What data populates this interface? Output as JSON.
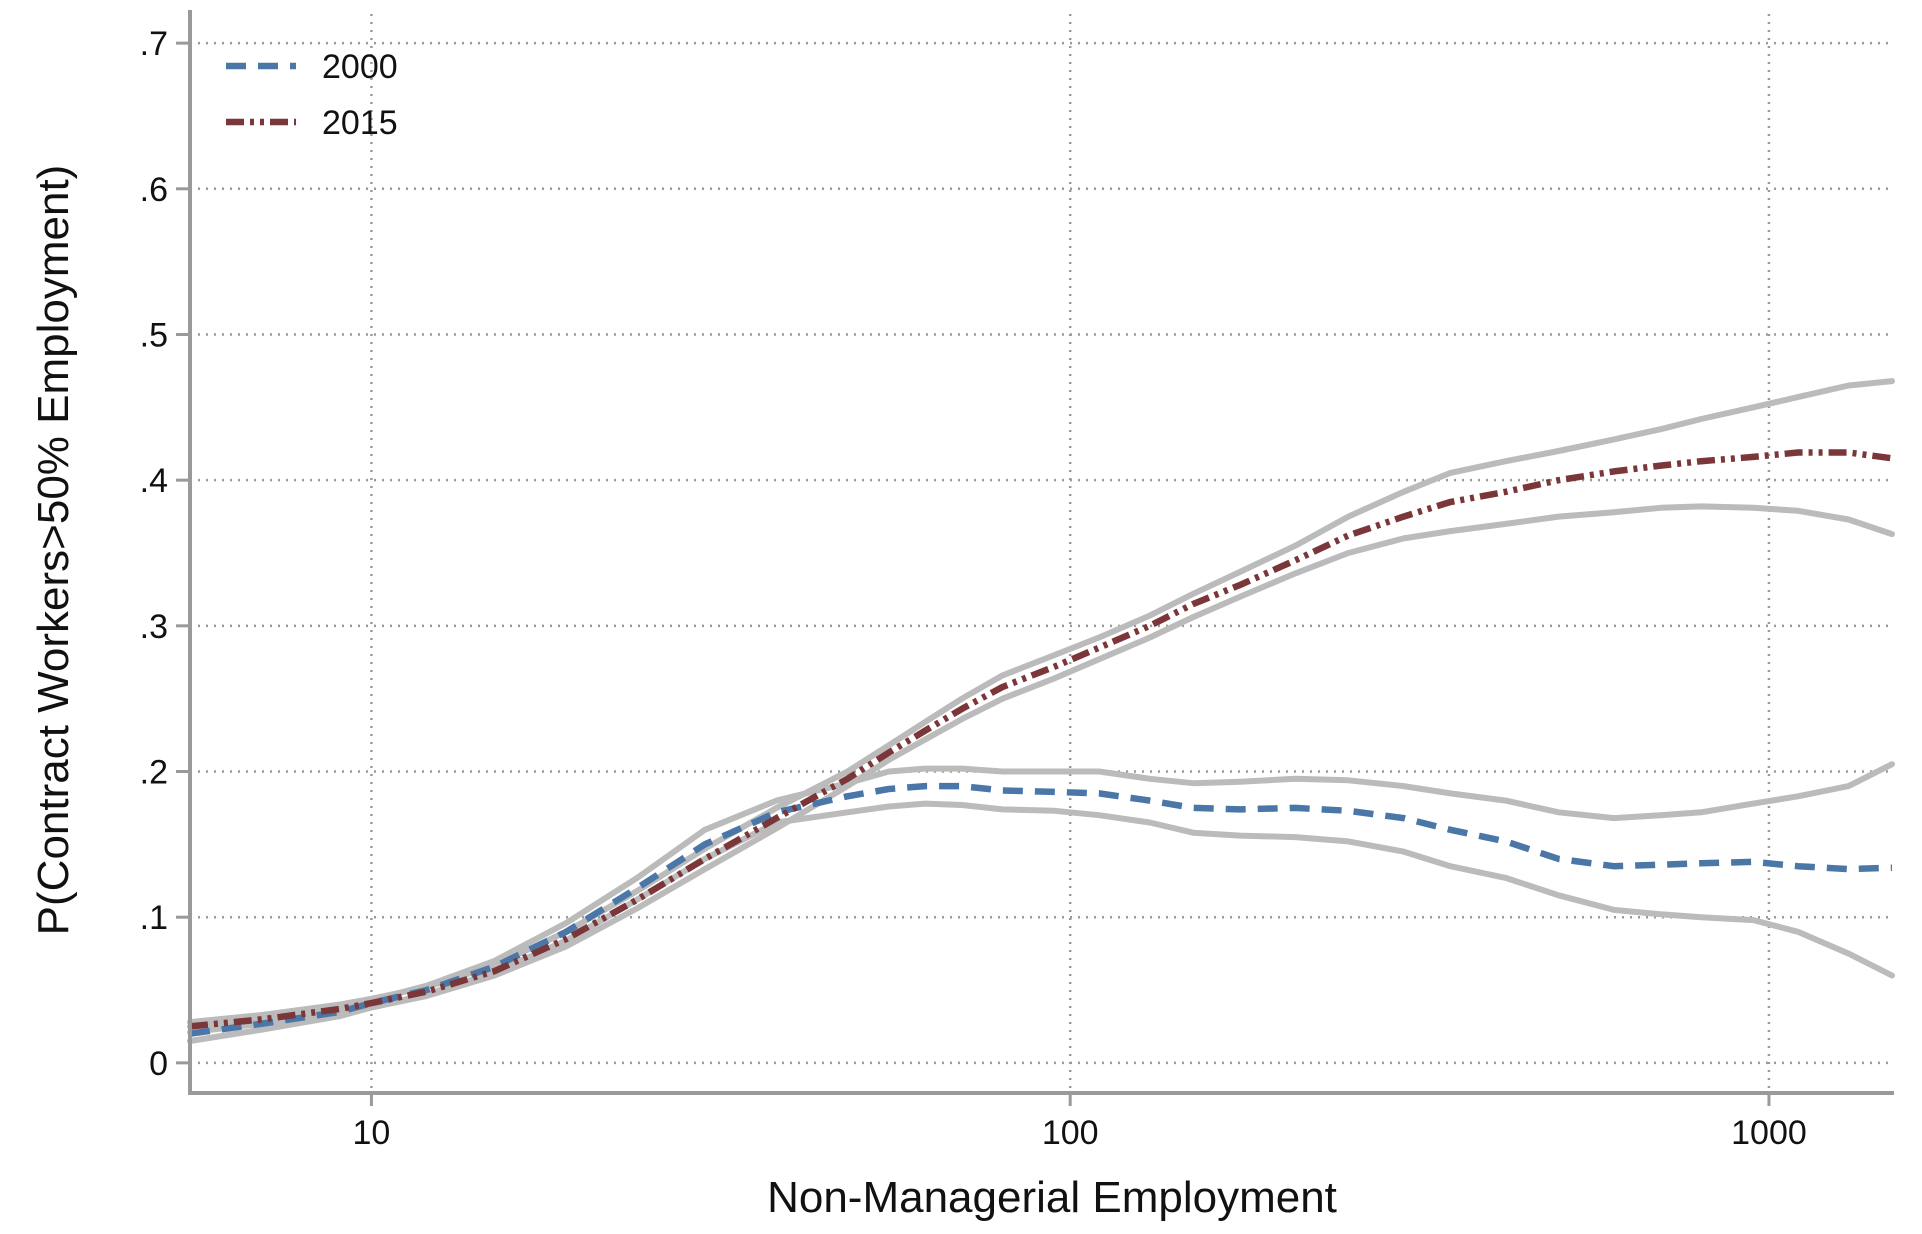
{
  "chart_data": {
    "type": "line",
    "title": "",
    "xlabel": "Non-Managerial Employment",
    "ylabel": "P(Contract Workers>50% Employment)",
    "x_scale": "log",
    "xlim": [
      5.5,
      1500
    ],
    "ylim": [
      -0.02,
      0.72
    ],
    "x_ticks": [
      10,
      100,
      1000
    ],
    "x_tick_labels": [
      "10",
      "100",
      "1000"
    ],
    "y_ticks": [
      0,
      0.1,
      0.2,
      0.3,
      0.4,
      0.5,
      0.6,
      0.7
    ],
    "y_tick_labels": [
      "0",
      ".1",
      ".2",
      ".3",
      ".4",
      ".5",
      ".6",
      ".7"
    ],
    "grid": true,
    "legend_position": "top-left",
    "series": [
      {
        "name": "2000",
        "color": "#4a77a8",
        "dash": "dashed",
        "x": [
          5.5,
          7,
          9,
          10,
          12,
          15,
          19,
          24,
          30,
          38,
          48,
          55,
          62,
          70,
          80,
          95,
          110,
          130,
          150,
          175,
          210,
          250,
          300,
          350,
          420,
          500,
          600,
          700,
          800,
          950,
          1100,
          1300,
          1500
        ],
        "y": [
          0.02,
          0.027,
          0.035,
          0.041,
          0.05,
          0.066,
          0.09,
          0.12,
          0.15,
          0.172,
          0.183,
          0.188,
          0.19,
          0.19,
          0.187,
          0.186,
          0.185,
          0.18,
          0.175,
          0.174,
          0.175,
          0.173,
          0.168,
          0.16,
          0.152,
          0.14,
          0.135,
          0.136,
          0.137,
          0.138,
          0.135,
          0.133,
          0.134
        ]
      },
      {
        "name": "2015",
        "color": "#7a3638",
        "dash": "dash-dot",
        "x": [
          5.5,
          7,
          9,
          10,
          12,
          15,
          19,
          24,
          30,
          38,
          48,
          55,
          62,
          70,
          80,
          95,
          110,
          130,
          150,
          175,
          210,
          250,
          300,
          350,
          420,
          500,
          600,
          700,
          800,
          950,
          1100,
          1300,
          1500
        ],
        "y": [
          0.025,
          0.03,
          0.037,
          0.041,
          0.049,
          0.063,
          0.085,
          0.112,
          0.14,
          0.168,
          0.195,
          0.213,
          0.228,
          0.243,
          0.258,
          0.272,
          0.285,
          0.3,
          0.315,
          0.328,
          0.345,
          0.362,
          0.375,
          0.385,
          0.392,
          0.4,
          0.406,
          0.41,
          0.413,
          0.416,
          0.419,
          0.419,
          0.415
        ]
      }
    ],
    "confidence_bands": [
      {
        "color": "#bbbbbb",
        "x": [
          5.5,
          7,
          9,
          10,
          12,
          15,
          19,
          24,
          30,
          38,
          48,
          55,
          62,
          70,
          80,
          95,
          110,
          130,
          150,
          175,
          210,
          250,
          300,
          350,
          420,
          500,
          600,
          700,
          800,
          950,
          1100,
          1300,
          1500
        ],
        "y": [
          0.025,
          0.031,
          0.038,
          0.043,
          0.053,
          0.07,
          0.096,
          0.127,
          0.16,
          0.18,
          0.192,
          0.2,
          0.202,
          0.202,
          0.2,
          0.2,
          0.2,
          0.195,
          0.192,
          0.193,
          0.195,
          0.194,
          0.19,
          0.185,
          0.18,
          0.172,
          0.168,
          0.17,
          0.172,
          0.178,
          0.183,
          0.19,
          0.205
        ]
      },
      {
        "color": "#bbbbbb",
        "x": [
          5.5,
          7,
          9,
          10,
          12,
          15,
          19,
          24,
          30,
          38,
          48,
          55,
          62,
          70,
          80,
          95,
          110,
          130,
          150,
          175,
          210,
          250,
          300,
          350,
          420,
          500,
          600,
          700,
          800,
          950,
          1100,
          1300,
          1500
        ],
        "y": [
          0.015,
          0.023,
          0.032,
          0.038,
          0.047,
          0.062,
          0.084,
          0.112,
          0.14,
          0.165,
          0.172,
          0.176,
          0.178,
          0.177,
          0.174,
          0.173,
          0.17,
          0.165,
          0.158,
          0.156,
          0.155,
          0.152,
          0.145,
          0.135,
          0.127,
          0.115,
          0.105,
          0.102,
          0.1,
          0.098,
          0.09,
          0.075,
          0.06
        ]
      },
      {
        "color": "#bbbbbb",
        "x": [
          5.5,
          7,
          9,
          10,
          12,
          15,
          19,
          24,
          30,
          38,
          48,
          55,
          62,
          70,
          80,
          95,
          110,
          130,
          150,
          175,
          210,
          250,
          300,
          350,
          420,
          500,
          600,
          700,
          800,
          950,
          1100,
          1300,
          1500
        ],
        "y": [
          0.028,
          0.033,
          0.04,
          0.044,
          0.052,
          0.067,
          0.09,
          0.118,
          0.147,
          0.175,
          0.2,
          0.218,
          0.234,
          0.25,
          0.266,
          0.28,
          0.292,
          0.307,
          0.322,
          0.337,
          0.355,
          0.375,
          0.392,
          0.405,
          0.413,
          0.42,
          0.428,
          0.435,
          0.442,
          0.45,
          0.457,
          0.465,
          0.468
        ]
      },
      {
        "color": "#bbbbbb",
        "x": [
          5.5,
          7,
          9,
          10,
          12,
          15,
          19,
          24,
          30,
          38,
          48,
          55,
          62,
          70,
          80,
          95,
          110,
          130,
          150,
          175,
          210,
          250,
          300,
          350,
          420,
          500,
          600,
          700,
          800,
          950,
          1100,
          1300,
          1500
        ],
        "y": [
          0.021,
          0.027,
          0.034,
          0.038,
          0.046,
          0.06,
          0.08,
          0.106,
          0.133,
          0.161,
          0.19,
          0.208,
          0.222,
          0.236,
          0.25,
          0.264,
          0.277,
          0.292,
          0.306,
          0.32,
          0.336,
          0.35,
          0.36,
          0.365,
          0.37,
          0.375,
          0.378,
          0.381,
          0.382,
          0.381,
          0.379,
          0.373,
          0.363
        ]
      }
    ],
    "grid_color": "#9a9a9a",
    "axis_color": "#9a9a9a"
  }
}
